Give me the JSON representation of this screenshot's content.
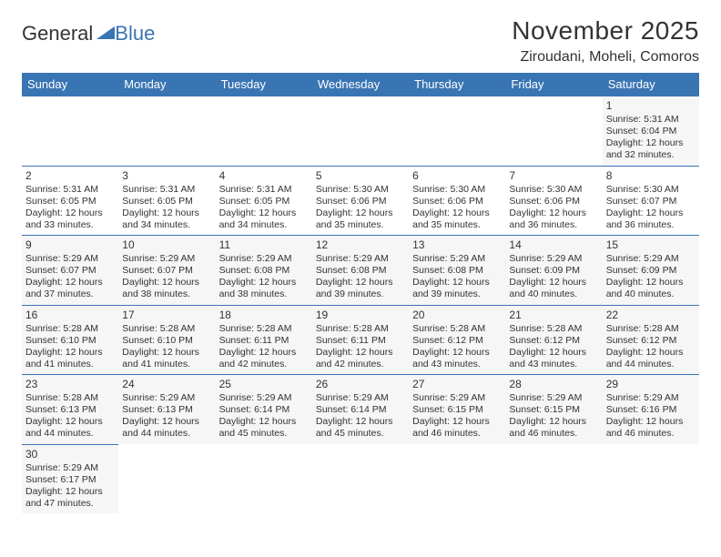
{
  "logo": {
    "part1": "General",
    "part2": "Blue"
  },
  "title": "November 2025",
  "subtitle": "Ziroudani, Moheli, Comoros",
  "colors": {
    "header_bg": "#3a75b3",
    "header_fg": "#ffffff",
    "cell_border": "#3a75b3",
    "text": "#333333",
    "cell_bg": "#f6f6f6",
    "page_bg": "#ffffff"
  },
  "day_headers": [
    "Sunday",
    "Monday",
    "Tuesday",
    "Wednesday",
    "Thursday",
    "Friday",
    "Saturday"
  ],
  "weeks": [
    [
      null,
      null,
      null,
      null,
      null,
      null,
      {
        "n": "1",
        "sunrise": "5:31 AM",
        "sunset": "6:04 PM",
        "daylight": "12 hours and 32 minutes."
      }
    ],
    [
      {
        "n": "2",
        "sunrise": "5:31 AM",
        "sunset": "6:05 PM",
        "daylight": "12 hours and 33 minutes."
      },
      {
        "n": "3",
        "sunrise": "5:31 AM",
        "sunset": "6:05 PM",
        "daylight": "12 hours and 34 minutes."
      },
      {
        "n": "4",
        "sunrise": "5:31 AM",
        "sunset": "6:05 PM",
        "daylight": "12 hours and 34 minutes."
      },
      {
        "n": "5",
        "sunrise": "5:30 AM",
        "sunset": "6:06 PM",
        "daylight": "12 hours and 35 minutes."
      },
      {
        "n": "6",
        "sunrise": "5:30 AM",
        "sunset": "6:06 PM",
        "daylight": "12 hours and 35 minutes."
      },
      {
        "n": "7",
        "sunrise": "5:30 AM",
        "sunset": "6:06 PM",
        "daylight": "12 hours and 36 minutes."
      },
      {
        "n": "8",
        "sunrise": "5:30 AM",
        "sunset": "6:07 PM",
        "daylight": "12 hours and 36 minutes."
      }
    ],
    [
      {
        "n": "9",
        "sunrise": "5:29 AM",
        "sunset": "6:07 PM",
        "daylight": "12 hours and 37 minutes."
      },
      {
        "n": "10",
        "sunrise": "5:29 AM",
        "sunset": "6:07 PM",
        "daylight": "12 hours and 38 minutes."
      },
      {
        "n": "11",
        "sunrise": "5:29 AM",
        "sunset": "6:08 PM",
        "daylight": "12 hours and 38 minutes."
      },
      {
        "n": "12",
        "sunrise": "5:29 AM",
        "sunset": "6:08 PM",
        "daylight": "12 hours and 39 minutes."
      },
      {
        "n": "13",
        "sunrise": "5:29 AM",
        "sunset": "6:08 PM",
        "daylight": "12 hours and 39 minutes."
      },
      {
        "n": "14",
        "sunrise": "5:29 AM",
        "sunset": "6:09 PM",
        "daylight": "12 hours and 40 minutes."
      },
      {
        "n": "15",
        "sunrise": "5:29 AM",
        "sunset": "6:09 PM",
        "daylight": "12 hours and 40 minutes."
      }
    ],
    [
      {
        "n": "16",
        "sunrise": "5:28 AM",
        "sunset": "6:10 PM",
        "daylight": "12 hours and 41 minutes."
      },
      {
        "n": "17",
        "sunrise": "5:28 AM",
        "sunset": "6:10 PM",
        "daylight": "12 hours and 41 minutes."
      },
      {
        "n": "18",
        "sunrise": "5:28 AM",
        "sunset": "6:11 PM",
        "daylight": "12 hours and 42 minutes."
      },
      {
        "n": "19",
        "sunrise": "5:28 AM",
        "sunset": "6:11 PM",
        "daylight": "12 hours and 42 minutes."
      },
      {
        "n": "20",
        "sunrise": "5:28 AM",
        "sunset": "6:12 PM",
        "daylight": "12 hours and 43 minutes."
      },
      {
        "n": "21",
        "sunrise": "5:28 AM",
        "sunset": "6:12 PM",
        "daylight": "12 hours and 43 minutes."
      },
      {
        "n": "22",
        "sunrise": "5:28 AM",
        "sunset": "6:12 PM",
        "daylight": "12 hours and 44 minutes."
      }
    ],
    [
      {
        "n": "23",
        "sunrise": "5:28 AM",
        "sunset": "6:13 PM",
        "daylight": "12 hours and 44 minutes."
      },
      {
        "n": "24",
        "sunrise": "5:29 AM",
        "sunset": "6:13 PM",
        "daylight": "12 hours and 44 minutes."
      },
      {
        "n": "25",
        "sunrise": "5:29 AM",
        "sunset": "6:14 PM",
        "daylight": "12 hours and 45 minutes."
      },
      {
        "n": "26",
        "sunrise": "5:29 AM",
        "sunset": "6:14 PM",
        "daylight": "12 hours and 45 minutes."
      },
      {
        "n": "27",
        "sunrise": "5:29 AM",
        "sunset": "6:15 PM",
        "daylight": "12 hours and 46 minutes."
      },
      {
        "n": "28",
        "sunrise": "5:29 AM",
        "sunset": "6:15 PM",
        "daylight": "12 hours and 46 minutes."
      },
      {
        "n": "29",
        "sunrise": "5:29 AM",
        "sunset": "6:16 PM",
        "daylight": "12 hours and 46 minutes."
      }
    ],
    [
      {
        "n": "30",
        "sunrise": "5:29 AM",
        "sunset": "6:17 PM",
        "daylight": "12 hours and 47 minutes."
      },
      null,
      null,
      null,
      null,
      null,
      null
    ]
  ],
  "labels": {
    "sunrise": "Sunrise: ",
    "sunset": "Sunset: ",
    "daylight": "Daylight: "
  }
}
